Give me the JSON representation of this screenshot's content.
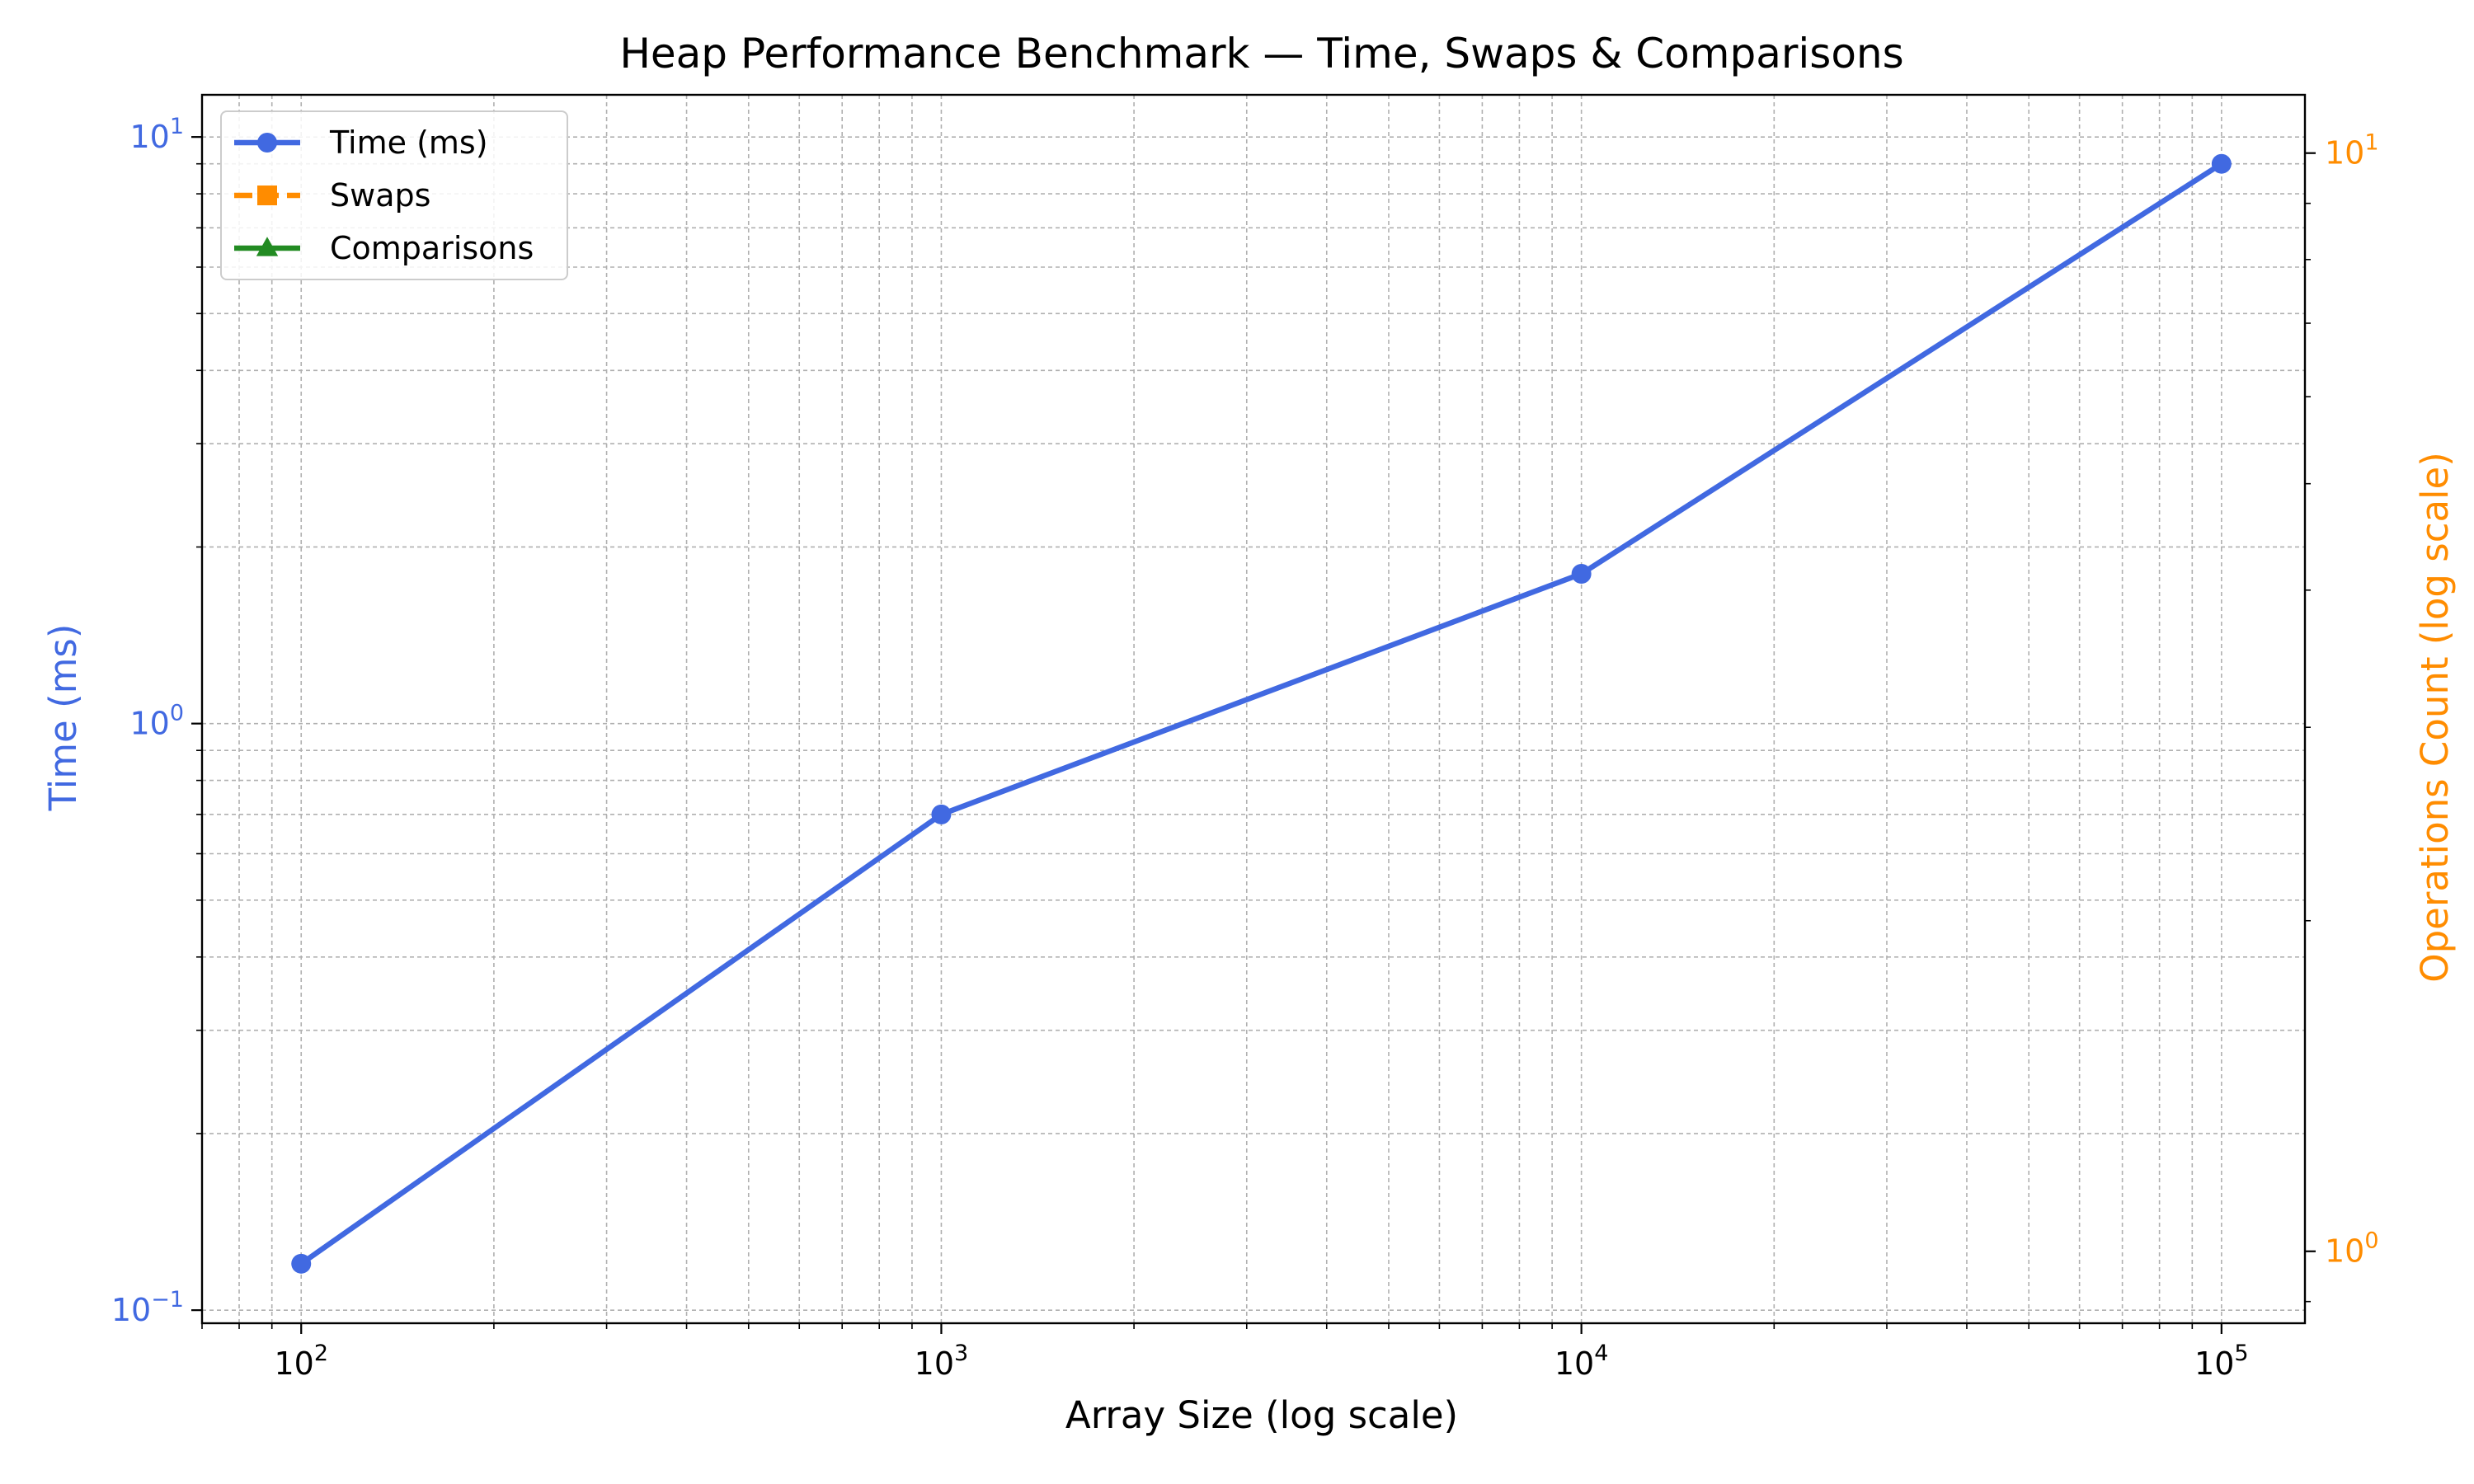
{
  "chart_data": {
    "type": "line",
    "title": "Heap Performance Benchmark — Time, Swaps & Comparisons",
    "xlabel": "Array Size (log scale)",
    "ylabel": "Time (ms)",
    "y2label": "Operations Count (log scale)",
    "x_scale": "log",
    "y_scale": "log",
    "y2_scale": "log",
    "xlim": [
      70,
      135000
    ],
    "ylim": [
      0.095,
      11.8
    ],
    "y2lim": [
      0.86,
      11.3
    ],
    "x_ticks": [
      {
        "value": 100,
        "base": "10",
        "exp": "2"
      },
      {
        "value": 1000,
        "base": "10",
        "exp": "3"
      },
      {
        "value": 10000,
        "base": "10",
        "exp": "4"
      },
      {
        "value": 100000,
        "base": "10",
        "exp": "5"
      }
    ],
    "y_ticks": [
      {
        "value": 0.1,
        "base": "10",
        "exp": "−1"
      },
      {
        "value": 1,
        "base": "10",
        "exp": "0"
      },
      {
        "value": 10,
        "base": "10",
        "exp": "1"
      }
    ],
    "y2_ticks": [
      {
        "value": 1,
        "base": "10",
        "exp": "0"
      },
      {
        "value": 10,
        "base": "10",
        "exp": "1"
      }
    ],
    "grid": true,
    "legend_position": "top-left",
    "series": [
      {
        "name": "Time (ms)",
        "axis": "left",
        "color": "#4169e1",
        "marker": "circle",
        "linestyle": "solid",
        "x": [
          100,
          1000,
          10000,
          100000
        ],
        "y": [
          0.12,
          0.7,
          1.8,
          9.0
        ]
      },
      {
        "name": "Swaps",
        "axis": "right",
        "color": "#ff8c00",
        "marker": "square",
        "linestyle": "dashed",
        "x": [],
        "y": []
      },
      {
        "name": "Comparisons",
        "axis": "right",
        "color": "#228b22",
        "marker": "triangle",
        "linestyle": "solid",
        "x": [],
        "y": []
      }
    ],
    "colors": {
      "left_axis": "#4169e1",
      "right_axis": "#ff8c00",
      "text": "#000000",
      "grid": "#b0b0b0"
    }
  }
}
